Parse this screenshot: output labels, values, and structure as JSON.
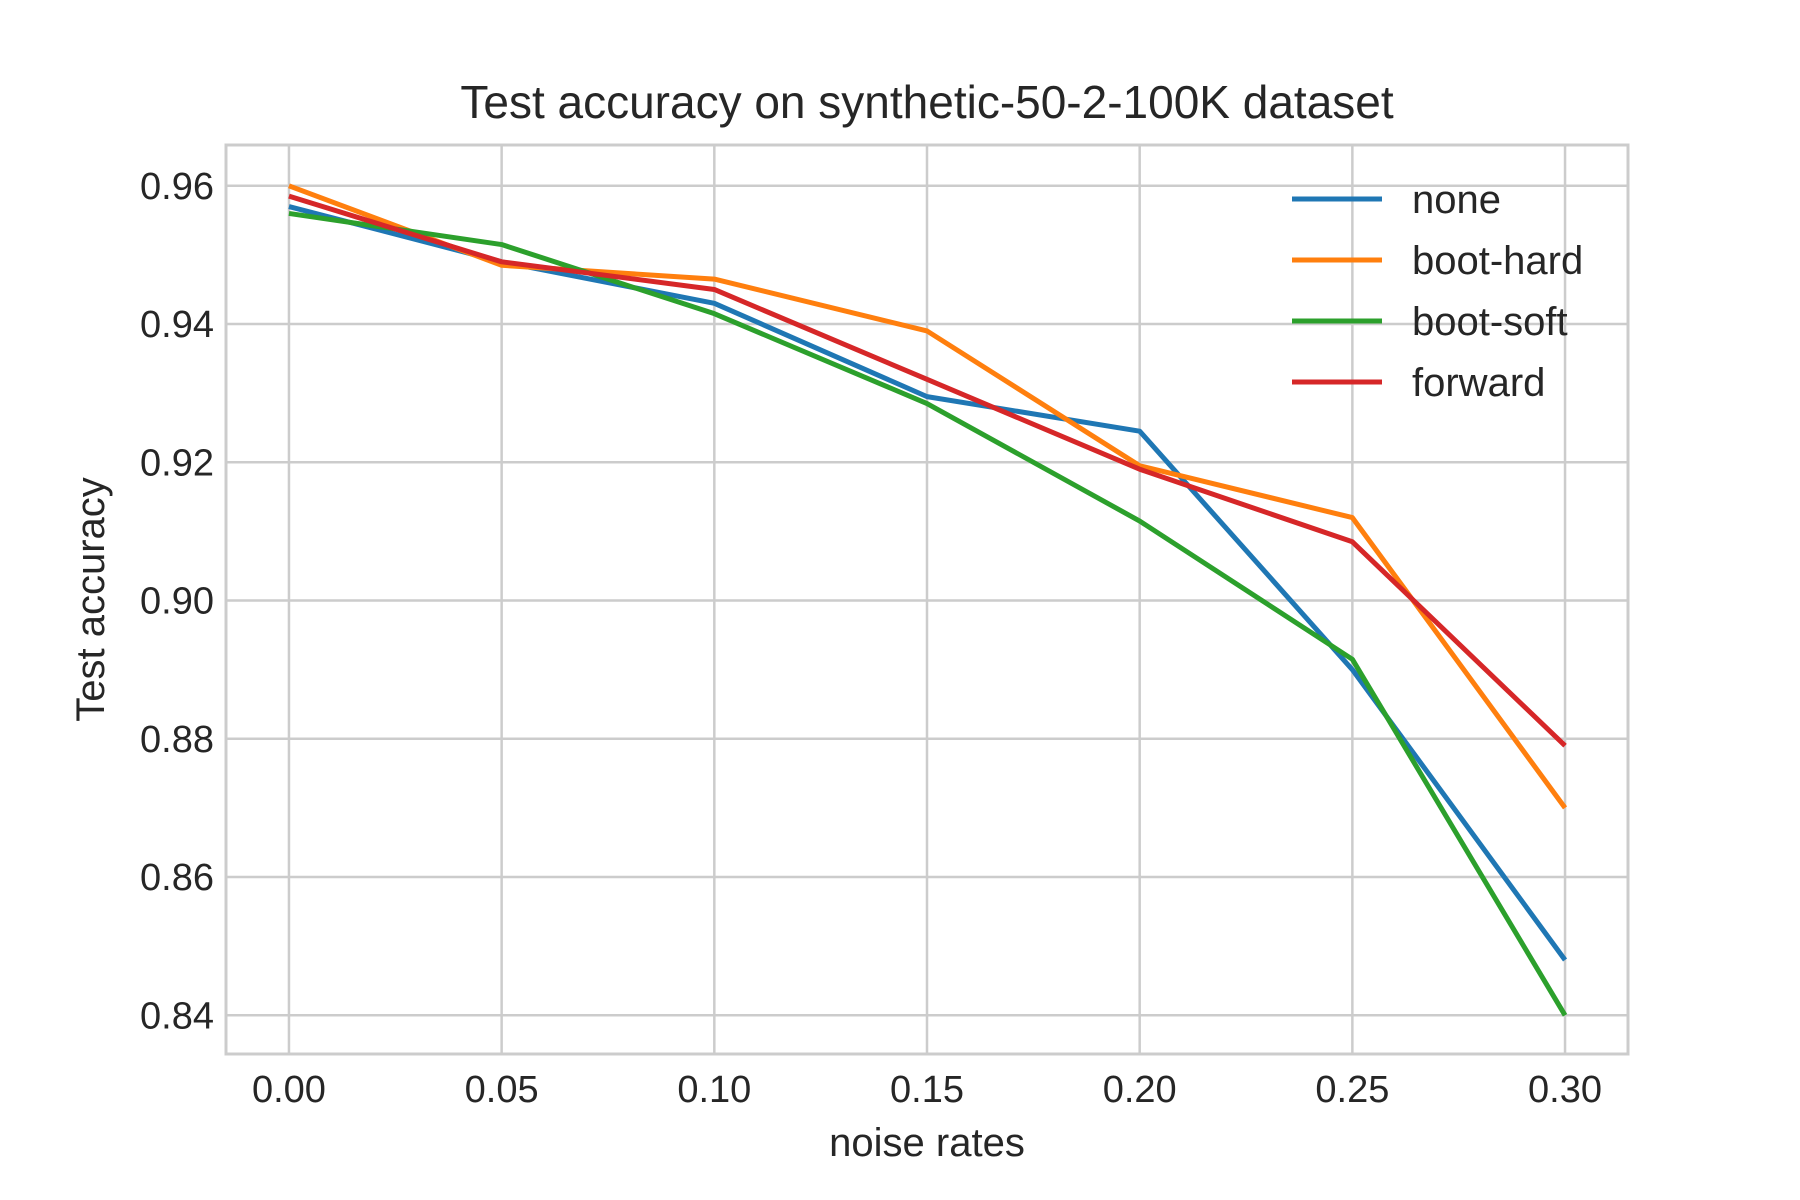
{
  "chart_data": {
    "type": "line",
    "title": "Test accuracy on synthetic-50-2-100K dataset",
    "xlabel": "noise rates",
    "ylabel": "Test accuracy",
    "x": [
      0.0,
      0.05,
      0.1,
      0.15,
      0.2,
      0.25,
      0.3
    ],
    "x_ticks": [
      0.0,
      0.05,
      0.1,
      0.15,
      0.2,
      0.25,
      0.3
    ],
    "x_tick_labels": [
      "0.00",
      "0.05",
      "0.10",
      "0.15",
      "0.20",
      "0.25",
      "0.30"
    ],
    "y_ticks": [
      0.84,
      0.86,
      0.88,
      0.9,
      0.92,
      0.94,
      0.96
    ],
    "y_tick_labels": [
      "0.84",
      "0.86",
      "0.88",
      "0.90",
      "0.92",
      "0.94",
      "0.96"
    ],
    "xlim": [
      -0.0148,
      0.3148
    ],
    "ylim": [
      0.8344,
      0.9659
    ],
    "grid": true,
    "legend_position": "top-right",
    "series": [
      {
        "name": "none",
        "color": "#1f77b4",
        "values": [
          0.957,
          0.949,
          0.943,
          0.9295,
          0.9245,
          0.89,
          0.848
        ]
      },
      {
        "name": "boot-hard",
        "color": "#ff7f0e",
        "values": [
          0.96,
          0.9485,
          0.9465,
          0.939,
          0.9195,
          0.912,
          0.87
        ]
      },
      {
        "name": "boot-soft",
        "color": "#2ca02c",
        "values": [
          0.956,
          0.9515,
          0.9415,
          0.9285,
          0.9115,
          0.8915,
          0.84
        ]
      },
      {
        "name": "forward",
        "color": "#d62728",
        "values": [
          0.9585,
          0.949,
          0.945,
          0.932,
          0.919,
          0.9085,
          0.879
        ]
      }
    ]
  }
}
